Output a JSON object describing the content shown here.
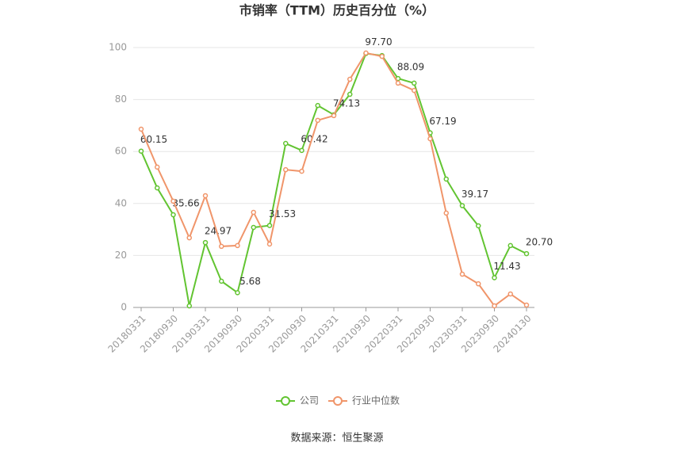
{
  "chart_data": {
    "type": "line",
    "title": "市销率（TTM）历史百分位（%）",
    "categories": [
      "20180331",
      null,
      "20180930",
      null,
      "20190331",
      null,
      "20190930",
      null,
      "20200331",
      null,
      "20200930",
      null,
      "20210331",
      null,
      "20210930",
      null,
      "20220331",
      null,
      "20220930",
      null,
      "20230331",
      null,
      "20230930",
      null,
      "20240130"
    ],
    "series": [
      {
        "name": "公司",
        "color": "#62c431",
        "values": [
          60.15,
          46.0,
          35.66,
          0.6,
          24.97,
          10.1,
          5.68,
          30.8,
          31.53,
          63.1,
          60.42,
          77.7,
          74.13,
          82.0,
          97.7,
          96.9,
          88.09,
          86.3,
          67.19,
          49.4,
          39.17,
          31.4,
          11.43,
          23.8,
          20.7
        ],
        "value_labels": [
          "60.15",
          null,
          "35.66",
          null,
          "24.97",
          null,
          "5.68",
          null,
          "31.53",
          null,
          "60.42",
          null,
          "74.13",
          null,
          "97.70",
          null,
          "88.09",
          null,
          "67.19",
          null,
          "39.17",
          null,
          "11.43",
          null,
          "20.70"
        ]
      },
      {
        "name": "行业中位数",
        "color": "#f0956a",
        "values": [
          68.6,
          54.0,
          40.9,
          26.8,
          43.0,
          23.5,
          23.8,
          36.6,
          24.4,
          53.0,
          52.4,
          72.0,
          73.8,
          87.8,
          97.9,
          96.6,
          86.3,
          83.5,
          64.9,
          36.3,
          12.8,
          9.1,
          0.6,
          5.2,
          0.9
        ]
      }
    ],
    "ylim": [
      0,
      100
    ],
    "yticks": [
      0,
      20,
      40,
      60,
      80,
      100
    ],
    "grid": true,
    "source": "数据来源：恒生聚源"
  }
}
